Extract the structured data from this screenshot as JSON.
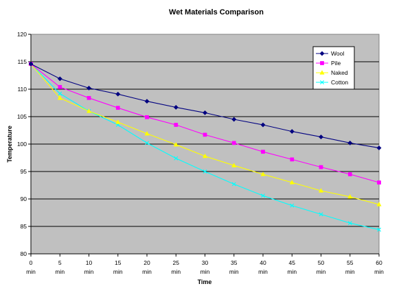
{
  "chart_data": {
    "type": "line",
    "title": "Wet Materials Comparison",
    "xlabel": "Time",
    "ylabel": "Temperature",
    "categories": [
      "0",
      "5",
      "10",
      "15",
      "20",
      "25",
      "30",
      "35",
      "40",
      "45",
      "50",
      "55",
      "60"
    ],
    "category_unit": "min",
    "ylim": [
      80,
      120
    ],
    "yticks": [
      80,
      85,
      90,
      95,
      100,
      105,
      110,
      115,
      120
    ],
    "grid": true,
    "legend_position": "top-right",
    "colors": {
      "plot_background": "#c0c0c0",
      "gridline": "#000000"
    },
    "series": [
      {
        "name": "Wool",
        "color": "#000080",
        "marker": "diamond",
        "values": [
          114.6,
          111.9,
          110.2,
          109.1,
          107.8,
          106.7,
          105.7,
          104.5,
          103.5,
          102.3,
          101.3,
          100.2,
          99.3
        ]
      },
      {
        "name": "Pile",
        "color": "#ff00ff",
        "marker": "square",
        "values": [
          114.6,
          110.4,
          108.4,
          106.6,
          104.9,
          103.5,
          101.7,
          100.2,
          98.6,
          97.2,
          95.8,
          94.5,
          93.0
        ]
      },
      {
        "name": "Naked",
        "color": "#ffff00",
        "marker": "triangle",
        "values": [
          114.6,
          108.4,
          106.0,
          104.0,
          101.9,
          99.9,
          97.8,
          96.1,
          94.5,
          93.0,
          91.5,
          90.4,
          89.0
        ]
      },
      {
        "name": "Cotton",
        "color": "#00ffff",
        "marker": "x",
        "values": [
          114.6,
          109.2,
          106.0,
          103.5,
          100.2,
          97.4,
          95.0,
          92.7,
          90.6,
          88.8,
          87.2,
          85.6,
          84.4
        ]
      }
    ]
  }
}
